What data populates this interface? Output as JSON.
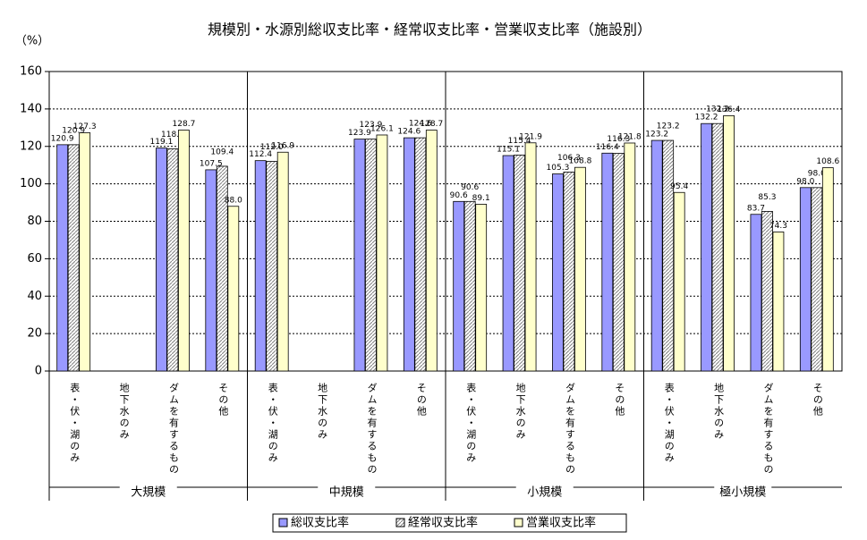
{
  "chart_data": {
    "type": "bar",
    "title": "規模別・水源別総収支比率・経常収支比率・営業収支比率（施設別）",
    "y_label": "（%）",
    "groups": [
      "大規模",
      "中規模",
      "小規模",
      "極小規模"
    ],
    "categories": [
      "表・伏・湖のみ",
      "地下水のみ",
      "ダムを有するもの",
      "その他",
      "表・伏・湖のみ",
      "地下水のみ",
      "ダムを有するもの",
      "その他",
      "表・伏・湖のみ",
      "地下水のみ",
      "ダムを有するもの",
      "その他",
      "表・伏・湖のみ",
      "地下水のみ",
      "ダムを有するもの",
      "その他"
    ],
    "series": [
      {
        "name": "総収支比率",
        "color": "#9999ff",
        "values": [
          120.9,
          null,
          119.1,
          107.5,
          112.4,
          null,
          123.9,
          124.6,
          90.6,
          115.1,
          105.3,
          116.4,
          123.2,
          132.2,
          83.7,
          98
        ],
        "value_labels": [
          "120.9",
          null,
          "119.1",
          "107.5",
          "112.4",
          null,
          "123.9",
          "124.6",
          "90.6",
          "115.1",
          "105.3",
          "116.4",
          "123.2",
          "132.2",
          "83.7",
          "98.0"
        ]
      },
      {
        "name": "経常収支比率",
        "color": "#ffffff",
        "hatch": "#808080",
        "values": [
          120.9,
          null,
          118.7,
          109.4,
          112,
          null,
          123.9,
          124.6,
          90.6,
          115.4,
          106.3,
          116.3,
          123.2,
          132.2,
          85.3,
          98
        ],
        "value_labels": [
          "120.9",
          null,
          "118.7",
          "109.4",
          "112.0",
          null,
          "123.9",
          "124.6",
          "90.6",
          "115.4",
          "106.3",
          "116.3",
          "123.2",
          "132.2",
          "85.3",
          "98.0"
        ]
      },
      {
        "name": "営業収支比率",
        "color": "#ffffcc",
        "values": [
          127.3,
          null,
          128.7,
          88,
          116.9,
          null,
          126.1,
          128.7,
          89.1,
          121.9,
          108.8,
          121.8,
          95.4,
          136.4,
          74.3,
          108.6
        ],
        "value_labels": [
          "127.3",
          null,
          "128.7",
          "88.0",
          "116.9",
          null,
          "126.1",
          "128.7",
          "89.1",
          "121.9",
          "108.8",
          "121.8",
          "95.4",
          "136.4",
          "74.3",
          "108.6"
        ]
      }
    ],
    "ylim": [
      0,
      160
    ],
    "yticks": [
      0,
      20,
      40,
      60,
      80,
      100,
      120,
      140,
      160
    ],
    "grid": true
  }
}
